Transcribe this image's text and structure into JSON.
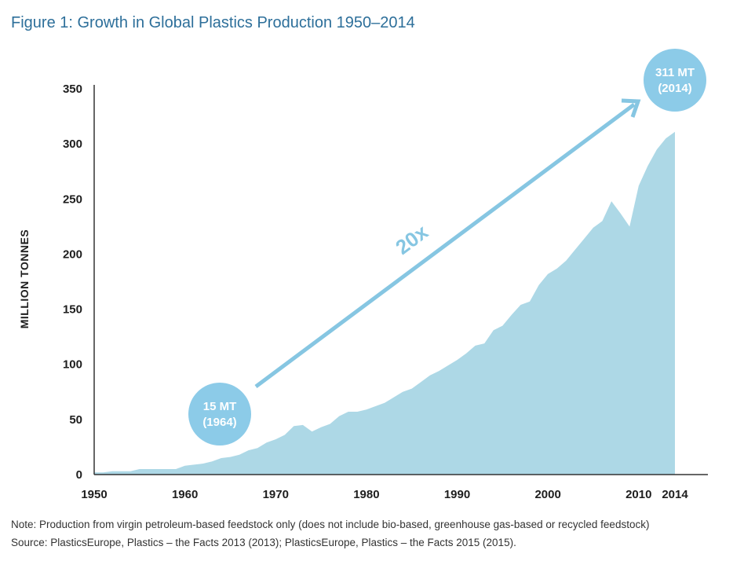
{
  "title": "Figure 1: Growth in Global Plastics Production 1950–2014",
  "note_line1": "Note: Production from virgin petroleum-based feedstock only (does not include bio-based, greenhouse gas-based or recycled feedstock)",
  "note_line2": "Source: PlasticsEurope, Plastics – the Facts 2013 (2013); PlasticsEurope, Plastics – the Facts 2015 (2015).",
  "colors": {
    "title": "#2d6f9a",
    "area": "#add8e6",
    "bubble": "#8ccbe8",
    "arrow": "#86c6e2",
    "axis": "#333333"
  },
  "chart_data": {
    "type": "area",
    "ylabel": "MILLION TONNES",
    "xlabel": "",
    "ylim": [
      0,
      350
    ],
    "xlim": [
      1950,
      2014
    ],
    "yticks": [
      0,
      50,
      100,
      150,
      200,
      250,
      300,
      350
    ],
    "xticks": [
      1950,
      1960,
      1970,
      1980,
      1990,
      2000,
      2010,
      2014
    ],
    "grid": false,
    "x": [
      1950,
      1951,
      1952,
      1953,
      1954,
      1955,
      1956,
      1957,
      1958,
      1959,
      1960,
      1961,
      1962,
      1963,
      1964,
      1965,
      1966,
      1967,
      1968,
      1969,
      1970,
      1971,
      1972,
      1973,
      1974,
      1975,
      1976,
      1977,
      1978,
      1979,
      1980,
      1981,
      1982,
      1983,
      1984,
      1985,
      1986,
      1987,
      1988,
      1989,
      1990,
      1991,
      1992,
      1993,
      1994,
      1995,
      1996,
      1997,
      1998,
      1999,
      2000,
      2001,
      2002,
      2003,
      2004,
      2005,
      2006,
      2007,
      2008,
      2009,
      2010,
      2011,
      2012,
      2013,
      2014
    ],
    "y": [
      2,
      2,
      3,
      3,
      3,
      5,
      5,
      5,
      5,
      5,
      8,
      9,
      10,
      12,
      15,
      16,
      18,
      22,
      24,
      29,
      32,
      36,
      44,
      45,
      39,
      43,
      46,
      53,
      57,
      57,
      59,
      62,
      65,
      70,
      75,
      78,
      84,
      90,
      94,
      99,
      104,
      110,
      117,
      119,
      131,
      135,
      145,
      154,
      157,
      172,
      182,
      187,
      194,
      204,
      214,
      224,
      230,
      248,
      237,
      225,
      262,
      280,
      295,
      305,
      311
    ],
    "annotations": [
      {
        "label_line1": "15 MT",
        "label_line2": "(1964)",
        "x": 1964,
        "y": 15
      },
      {
        "label_line1": "311 MT",
        "label_line2": "(2014)",
        "x": 2014,
        "y": 311
      },
      {
        "label": "20x"
      }
    ]
  }
}
